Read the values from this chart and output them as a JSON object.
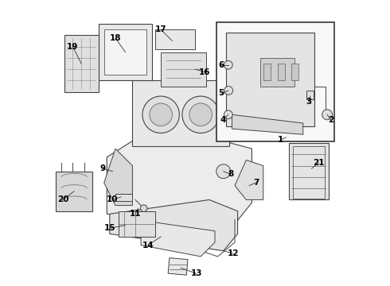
{
  "bg_color": "#ffffff",
  "line_color": "#555555",
  "text_color": "#000000",
  "font_size": 7.5,
  "labels_config": [
    [
      20,
      0.075,
      0.33,
      0.035,
      0.3
    ],
    [
      19,
      0.1,
      0.78,
      0.07,
      0.84
    ],
    [
      18,
      0.255,
      0.82,
      0.22,
      0.87
    ],
    [
      17,
      0.42,
      0.86,
      0.38,
      0.9
    ],
    [
      16,
      0.5,
      0.76,
      0.535,
      0.75
    ],
    [
      15,
      0.255,
      0.21,
      0.2,
      0.2
    ],
    [
      14,
      0.38,
      0.17,
      0.335,
      0.14
    ],
    [
      13,
      0.45,
      0.06,
      0.505,
      0.04
    ],
    [
      12,
      0.6,
      0.12,
      0.635,
      0.11
    ],
    [
      11,
      0.3,
      0.27,
      0.29,
      0.25
    ],
    [
      10,
      0.24,
      0.31,
      0.21,
      0.3
    ],
    [
      9,
      0.21,
      0.4,
      0.175,
      0.41
    ],
    [
      8,
      0.6,
      0.4,
      0.625,
      0.39
    ],
    [
      7,
      0.69,
      0.35,
      0.715,
      0.36
    ],
    [
      21,
      0.91,
      0.41,
      0.935,
      0.43
    ],
    [
      1,
      0.82,
      0.52,
      0.8,
      0.51
    ],
    [
      2,
      0.965,
      0.6,
      0.978,
      0.58
    ],
    [
      3,
      0.905,
      0.665,
      0.9,
      0.645
    ],
    [
      4,
      0.617,
      0.6,
      0.598,
      0.58
    ],
    [
      5,
      0.618,
      0.685,
      0.593,
      0.675
    ],
    [
      6,
      0.617,
      0.775,
      0.593,
      0.775
    ]
  ]
}
